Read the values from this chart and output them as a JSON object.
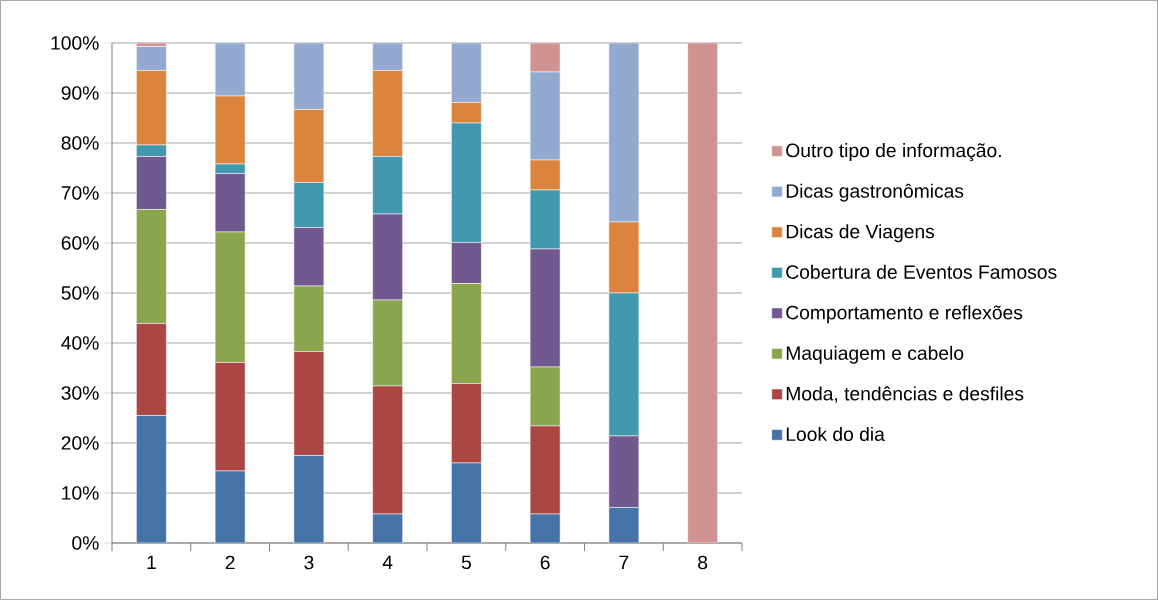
{
  "chart_data": {
    "type": "bar",
    "stacked": true,
    "categories": [
      "1",
      "2",
      "3",
      "4",
      "5",
      "6",
      "7",
      "8"
    ],
    "series": [
      {
        "name": "Look do dia",
        "color": "#4572a7",
        "values": [
          25.5,
          14.4,
          17.5,
          5.8,
          16.0,
          5.8,
          7.1,
          0
        ]
      },
      {
        "name": "Moda, tendências e desfiles",
        "color": "#aa4643",
        "values": [
          18.4,
          21.7,
          20.8,
          25.6,
          15.9,
          17.6,
          0,
          0
        ]
      },
      {
        "name": "Maquiagem e cabelo",
        "color": "#89a54e",
        "values": [
          22.8,
          26.1,
          13.1,
          17.2,
          20.0,
          11.8,
          0,
          0
        ]
      },
      {
        "name": "Comportamento e reflexões",
        "color": "#71588f",
        "values": [
          10.6,
          11.7,
          11.7,
          17.2,
          8.2,
          23.6,
          14.3,
          0
        ]
      },
      {
        "name": "Cobertura de Eventos Famosos",
        "color": "#4198af",
        "values": [
          2.3,
          1.9,
          9.0,
          11.5,
          23.9,
          11.8,
          28.6,
          0
        ]
      },
      {
        "name": "Dicas de Viagens",
        "color": "#db843d",
        "values": [
          14.9,
          13.6,
          14.6,
          17.2,
          4.1,
          6.0,
          14.2,
          0
        ]
      },
      {
        "name": "Dicas gastronômicas",
        "color": "#93a9cf",
        "values": [
          4.8,
          10.6,
          13.3,
          5.5,
          11.9,
          17.6,
          35.8,
          0
        ]
      },
      {
        "name": "Outro tipo de informação.",
        "color": "#d19392",
        "values": [
          0.7,
          0,
          0,
          0,
          0,
          5.8,
          0,
          100
        ]
      }
    ],
    "ylim": [
      0,
      100
    ],
    "yticks": [
      {
        "value": 0,
        "label": "0%"
      },
      {
        "value": 10,
        "label": "10%"
      },
      {
        "value": 20,
        "label": "20%"
      },
      {
        "value": 30,
        "label": "30%"
      },
      {
        "value": 40,
        "label": "40%"
      },
      {
        "value": 50,
        "label": "50%"
      },
      {
        "value": 60,
        "label": "60%"
      },
      {
        "value": 70,
        "label": "70%"
      },
      {
        "value": 80,
        "label": "80%"
      },
      {
        "value": 90,
        "label": "90%"
      },
      {
        "value": 100,
        "label": "100%"
      }
    ],
    "grid": "y",
    "legend": "right"
  }
}
